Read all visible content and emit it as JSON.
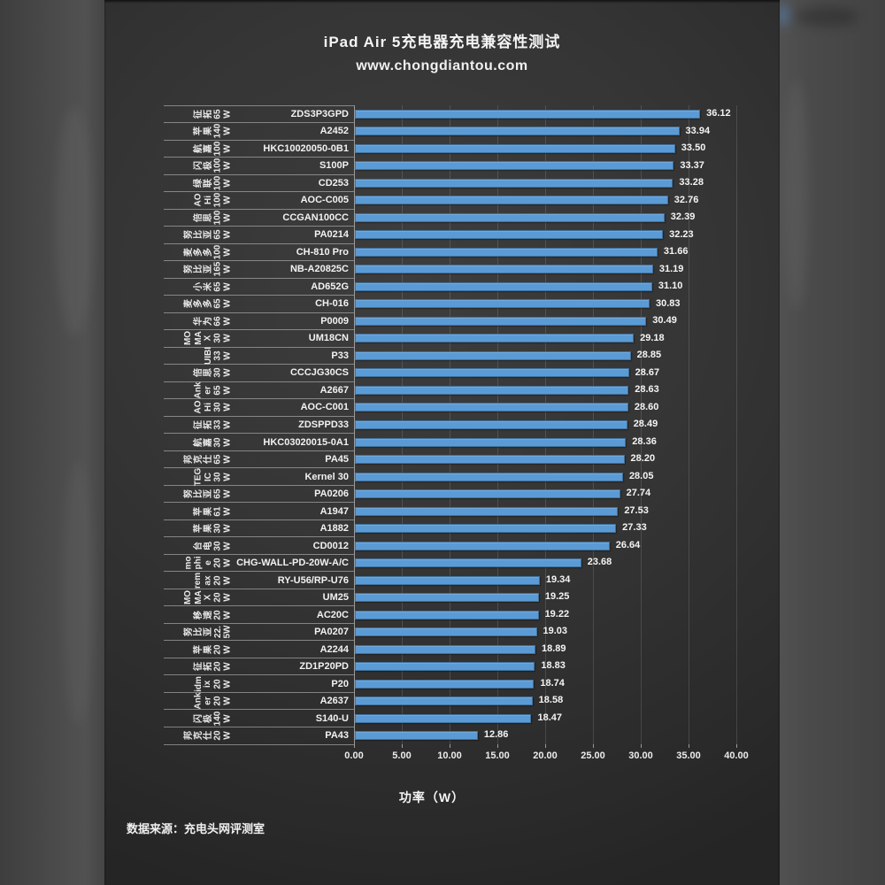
{
  "title": "iPad Air 5充电器充电兼容性测试",
  "subtitle": "www.chongdiantou.com",
  "source_note": "数据来源：充电头网评测室",
  "colors": {
    "bar_fill": "#5b9bd5",
    "bar_border": "#41719c",
    "background": "#333333"
  },
  "chart_data": {
    "type": "bar",
    "orientation": "horizontal",
    "title": "iPad Air 5充电器充电兼容性测试",
    "subtitle": "www.chongdiantou.com",
    "xlabel": "功率（W）",
    "xlim": [
      0,
      40
    ],
    "x_ticks": [
      "0.00",
      "5.00",
      "10.00",
      "15.00",
      "20.00",
      "25.00",
      "30.00",
      "35.00",
      "40.00"
    ],
    "grid": "vertical",
    "value_labels": "outside-end",
    "rows": [
      {
        "brand": "征拓",
        "watt": "65 W",
        "model": "ZDS3P3GPD",
        "value": 36.12
      },
      {
        "brand": "苹果",
        "watt": "140 W",
        "model": "A2452",
        "value": 33.94
      },
      {
        "brand": "航嘉",
        "watt": "100 W",
        "model": "HKC10020050-0B1",
        "value": 33.5
      },
      {
        "brand": "闪极",
        "watt": "100 W",
        "model": "S100P",
        "value": 33.37
      },
      {
        "brand": "绿联",
        "watt": "100 W",
        "model": "CD253",
        "value": 33.28
      },
      {
        "brand": "AOHi",
        "brand_lines": [
          "AO",
          "Hi"
        ],
        "watt": "100 W",
        "model": "AOC-C005",
        "value": 32.76
      },
      {
        "brand": "倍思",
        "watt": "100 W",
        "model": "CCGAN100CC",
        "value": 32.39
      },
      {
        "brand": "努比亚",
        "watt": "65 W",
        "model": "PA0214",
        "value": 32.23
      },
      {
        "brand": "麦多多",
        "watt": "100 W",
        "model": "CH-810 Pro",
        "value": 31.66
      },
      {
        "brand": "努比亚",
        "watt": "165 W",
        "model": "NB-A20825C",
        "value": 31.19
      },
      {
        "brand": "小米",
        "watt": "65 W",
        "model": "AD652G",
        "value": 31.1
      },
      {
        "brand": "麦多多",
        "watt": "65 W",
        "model": "CH-016",
        "value": 30.83
      },
      {
        "brand": "华为",
        "watt": "66 W",
        "model": "P0009",
        "value": 30.49
      },
      {
        "brand": "MOMAX",
        "brand_lines": [
          "MO",
          "MA",
          "X"
        ],
        "watt": "30 W",
        "model": "UM18CN",
        "value": 29.18
      },
      {
        "brand": "UIBI",
        "brand_lines": [
          "UIBI"
        ],
        "watt": "33 W",
        "model": "P33",
        "value": 28.85
      },
      {
        "brand": "倍思",
        "watt": "30 W",
        "model": "CCCJG30CS",
        "value": 28.67
      },
      {
        "brand": "Anker",
        "brand_lines": [
          "Ank",
          "er"
        ],
        "watt": "65 W",
        "model": "A2667",
        "value": 28.63
      },
      {
        "brand": "AOHi",
        "brand_lines": [
          "AO",
          "Hi"
        ],
        "watt": "30 W",
        "model": "AOC-C001",
        "value": 28.6
      },
      {
        "brand": "征拓",
        "watt": "33 W",
        "model": "ZDSPPD33",
        "value": 28.49
      },
      {
        "brand": "航嘉",
        "watt": "30 W",
        "model": "HKC03020015-0A1",
        "value": 28.36
      },
      {
        "brand": "邦克仕",
        "watt": "65 W",
        "model": "PA45",
        "value": 28.2
      },
      {
        "brand": "TEGIC",
        "brand_lines": [
          "TEG",
          "IC"
        ],
        "watt": "30 W",
        "model": "Kernel 30",
        "value": 28.05
      },
      {
        "brand": "努比亚",
        "watt": "65 W",
        "model": "PA0206",
        "value": 27.74
      },
      {
        "brand": "苹果",
        "watt": "61 W",
        "model": "A1947",
        "value": 27.53
      },
      {
        "brand": "苹果",
        "watt": "30 W",
        "model": "A1882",
        "value": 27.33
      },
      {
        "brand": "台电",
        "watt": "30 W",
        "model": "CD0012",
        "value": 26.64
      },
      {
        "brand": "mophie",
        "brand_lines": [
          "mo",
          "phi",
          "e"
        ],
        "watt": "20 W",
        "model": "CHG-WALL-PD-20W-A/C",
        "value": 23.68
      },
      {
        "brand": "remax",
        "brand_lines": [
          "rem",
          "ax"
        ],
        "watt": "20 W",
        "model": "RY-U56/RP-U76",
        "value": 19.34
      },
      {
        "brand": "MOMAX",
        "brand_lines": [
          "MO",
          "MA",
          "X"
        ],
        "watt": "20 W",
        "model": "UM25",
        "value": 19.25
      },
      {
        "brand": "移速",
        "watt": "20 W",
        "model": "AC20C",
        "value": 19.22
      },
      {
        "brand": "努比亚",
        "watt": "22.5W",
        "watt_lines": [
          "22.",
          "5W"
        ],
        "model": "PA0207",
        "value": 19.03
      },
      {
        "brand": "苹果",
        "watt": "20 W",
        "model": "A2244",
        "value": 18.89
      },
      {
        "brand": "征拓",
        "watt": "20 W",
        "model": "ZD1P20PD",
        "value": 18.83
      },
      {
        "brand": "idmix",
        "brand_lines": [
          "idm",
          "ix"
        ],
        "watt": "20 W",
        "model": "P20",
        "value": 18.74
      },
      {
        "brand": "Anker",
        "brand_lines": [
          "Ank",
          "er"
        ],
        "watt": "20 W",
        "model": "A2637",
        "value": 18.58
      },
      {
        "brand": "闪极",
        "watt": "140 W",
        "model": "S140-U",
        "value": 18.47
      },
      {
        "brand": "邦克仕",
        "watt": "20 W",
        "model": "PA43",
        "value": 12.86
      }
    ]
  }
}
